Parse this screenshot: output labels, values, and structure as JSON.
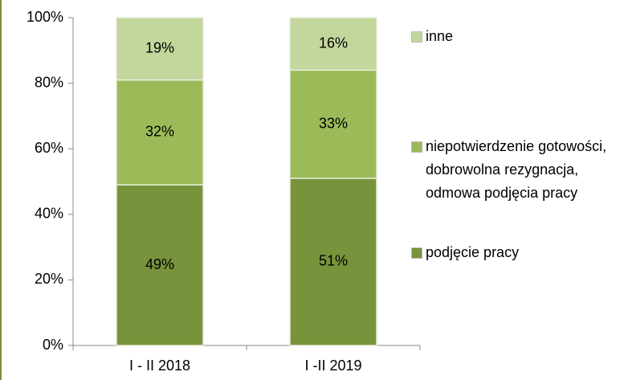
{
  "chart_data": {
    "type": "stacked_bar",
    "categories": [
      "I - II 2018",
      "I -II 2019"
    ],
    "series": [
      {
        "name": "podjęcie pracy",
        "color": "#77933c",
        "values": [
          49,
          51
        ],
        "value_labels": [
          "49%",
          "51%"
        ]
      },
      {
        "name": "niepotwierdzenie gotowości, dobrowolna rezygnacja, odmowa podjęcia pracy",
        "color": "#9bbb59",
        "values": [
          32,
          33
        ],
        "value_labels": [
          "32%",
          "33%"
        ]
      },
      {
        "name": "inne",
        "color": "#c3d69b",
        "values": [
          19,
          16
        ],
        "value_labels": [
          "19%",
          "16%"
        ]
      }
    ],
    "ylim": [
      0,
      100
    ],
    "yticks": [
      {
        "value": 0,
        "label": "0%"
      },
      {
        "value": 20,
        "label": "20%"
      },
      {
        "value": 40,
        "label": "40%"
      },
      {
        "value": 60,
        "label": "60%"
      },
      {
        "value": 80,
        "label": "80%"
      },
      {
        "value": 100,
        "label": "100%"
      }
    ],
    "legend": "right"
  }
}
